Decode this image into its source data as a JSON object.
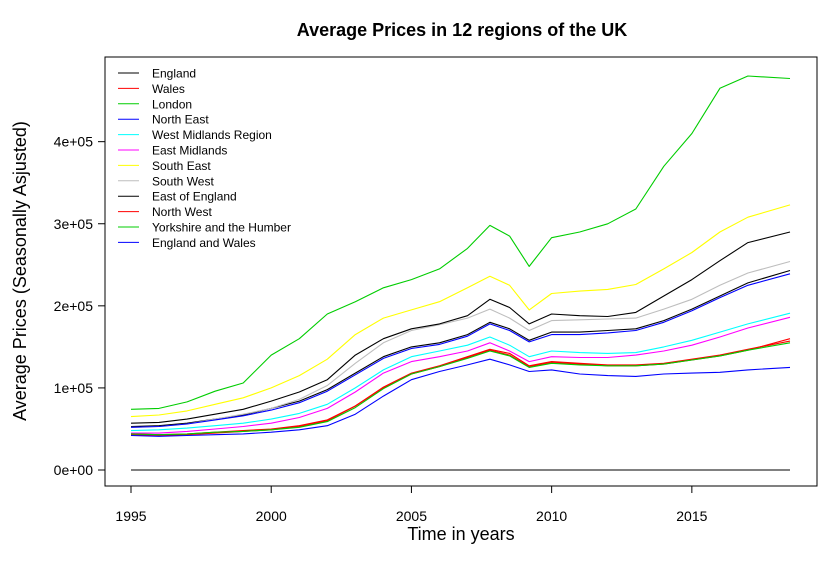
{
  "chart_data": {
    "type": "line",
    "title": "Average Prices in 12 regions of the UK",
    "xlabel": "Time in years",
    "ylabel": "Average Prices (Seasonally Asjusted)",
    "xlim": [
      1995,
      2018.5
    ],
    "ylim": [
      0,
      480000
    ],
    "x_ticks": [
      1995,
      2000,
      2005,
      2010,
      2015
    ],
    "x_tick_labels": [
      "1995",
      "2000",
      "2005",
      "2010",
      "2015"
    ],
    "y_ticks": [
      0,
      100000,
      200000,
      300000,
      400000
    ],
    "y_tick_labels": [
      "0e+00",
      "1e+05",
      "2e+05",
      "3e+05",
      "4e+05"
    ],
    "legend_position": "top-left",
    "grid": false,
    "x": [
      1995,
      1996,
      1997,
      1998,
      1999,
      2000,
      2001,
      2002,
      2003,
      2004,
      2005,
      2006,
      2007,
      2007.8,
      2008.5,
      2009.2,
      2010,
      2011,
      2012,
      2013,
      2014,
      2015,
      2016,
      2017,
      2018.5
    ],
    "baseline": {
      "y": 0,
      "color": "#000000"
    },
    "series": [
      {
        "name": "England",
        "color": "#000000",
        "values": [
          53000,
          54000,
          57000,
          62000,
          67000,
          75000,
          84000,
          98000,
          118000,
          138000,
          150000,
          155000,
          165000,
          180000,
          172000,
          158000,
          168000,
          168000,
          170000,
          172000,
          182000,
          196000,
          212000,
          228000,
          243000
        ]
      },
      {
        "name": "Wales",
        "color": "#FF0000",
        "values": [
          43000,
          42000,
          43000,
          45000,
          47000,
          49000,
          53000,
          60000,
          78000,
          101000,
          118000,
          127000,
          138000,
          147000,
          142000,
          127000,
          132000,
          130000,
          128000,
          128000,
          130000,
          135000,
          140000,
          147000,
          157000
        ]
      },
      {
        "name": "London",
        "color": "#00CD00",
        "values": [
          74000,
          75000,
          83000,
          96000,
          106000,
          140000,
          160000,
          190000,
          205000,
          222000,
          232000,
          245000,
          270000,
          298000,
          285000,
          248000,
          283000,
          290000,
          300000,
          318000,
          370000,
          410000,
          465000,
          480000,
          477000
        ]
      },
      {
        "name": "North East",
        "color": "#0000FF",
        "values": [
          42000,
          41000,
          42000,
          43000,
          44000,
          46000,
          49000,
          54000,
          68000,
          90000,
          110000,
          120000,
          128000,
          135000,
          128000,
          120000,
          122000,
          117000,
          115000,
          114000,
          117000,
          118000,
          119000,
          122000,
          125000
        ]
      },
      {
        "name": "West Midlands Region",
        "color": "#00FFFF",
        "values": [
          48000,
          49000,
          51000,
          54000,
          57000,
          62000,
          69000,
          80000,
          100000,
          122000,
          138000,
          145000,
          152000,
          162000,
          152000,
          138000,
          145000,
          143000,
          142000,
          143000,
          150000,
          158000,
          168000,
          178000,
          191000
        ]
      },
      {
        "name": "East Midlands",
        "color": "#FF00FF",
        "values": [
          45000,
          45000,
          47000,
          50000,
          53000,
          57000,
          64000,
          75000,
          95000,
          118000,
          132000,
          138000,
          145000,
          155000,
          145000,
          132000,
          138000,
          137000,
          137000,
          140000,
          145000,
          152000,
          162000,
          173000,
          186000
        ]
      },
      {
        "name": "South East",
        "color": "#FFFF00",
        "values": [
          65000,
          67000,
          72000,
          80000,
          88000,
          100000,
          115000,
          135000,
          165000,
          185000,
          195000,
          205000,
          222000,
          236000,
          225000,
          195000,
          215000,
          218000,
          220000,
          226000,
          245000,
          265000,
          290000,
          308000,
          323000
        ]
      },
      {
        "name": "South West",
        "color": "#BEBEBE",
        "values": [
          52000,
          53000,
          56000,
          62000,
          68000,
          75000,
          86000,
          103000,
          130000,
          155000,
          170000,
          177000,
          185000,
          196000,
          185000,
          170000,
          182000,
          183000,
          184000,
          185000,
          196000,
          208000,
          225000,
          240000,
          254000
        ]
      },
      {
        "name": "East of England",
        "color": "#000000",
        "values": [
          57000,
          58000,
          62000,
          68000,
          74000,
          84000,
          95000,
          110000,
          140000,
          160000,
          172000,
          178000,
          188000,
          208000,
          198000,
          178000,
          190000,
          188000,
          187000,
          192000,
          212000,
          232000,
          255000,
          277000,
          290000
        ]
      },
      {
        "name": "North West",
        "color": "#FF0000",
        "values": [
          44000,
          43000,
          44000,
          46000,
          48000,
          50000,
          54000,
          61000,
          78000,
          100000,
          117000,
          126000,
          137000,
          146000,
          140000,
          126000,
          131000,
          129000,
          127000,
          127000,
          129000,
          134000,
          139000,
          146000,
          160000
        ]
      },
      {
        "name": "Yorkshire and the Humber",
        "color": "#00CD00",
        "values": [
          44000,
          43000,
          44000,
          46000,
          47000,
          49000,
          52000,
          59000,
          76000,
          99000,
          117000,
          126000,
          136000,
          145000,
          139000,
          125000,
          130000,
          128000,
          127000,
          127000,
          129000,
          134000,
          139000,
          146000,
          155000
        ]
      },
      {
        "name": "England and Wales",
        "color": "#0000FF",
        "values": [
          52000,
          53000,
          56000,
          61000,
          66000,
          73000,
          82000,
          96000,
          116000,
          136000,
          148000,
          153000,
          163000,
          178000,
          170000,
          156000,
          165000,
          165000,
          167000,
          170000,
          180000,
          194000,
          210000,
          225000,
          239000
        ]
      }
    ]
  }
}
